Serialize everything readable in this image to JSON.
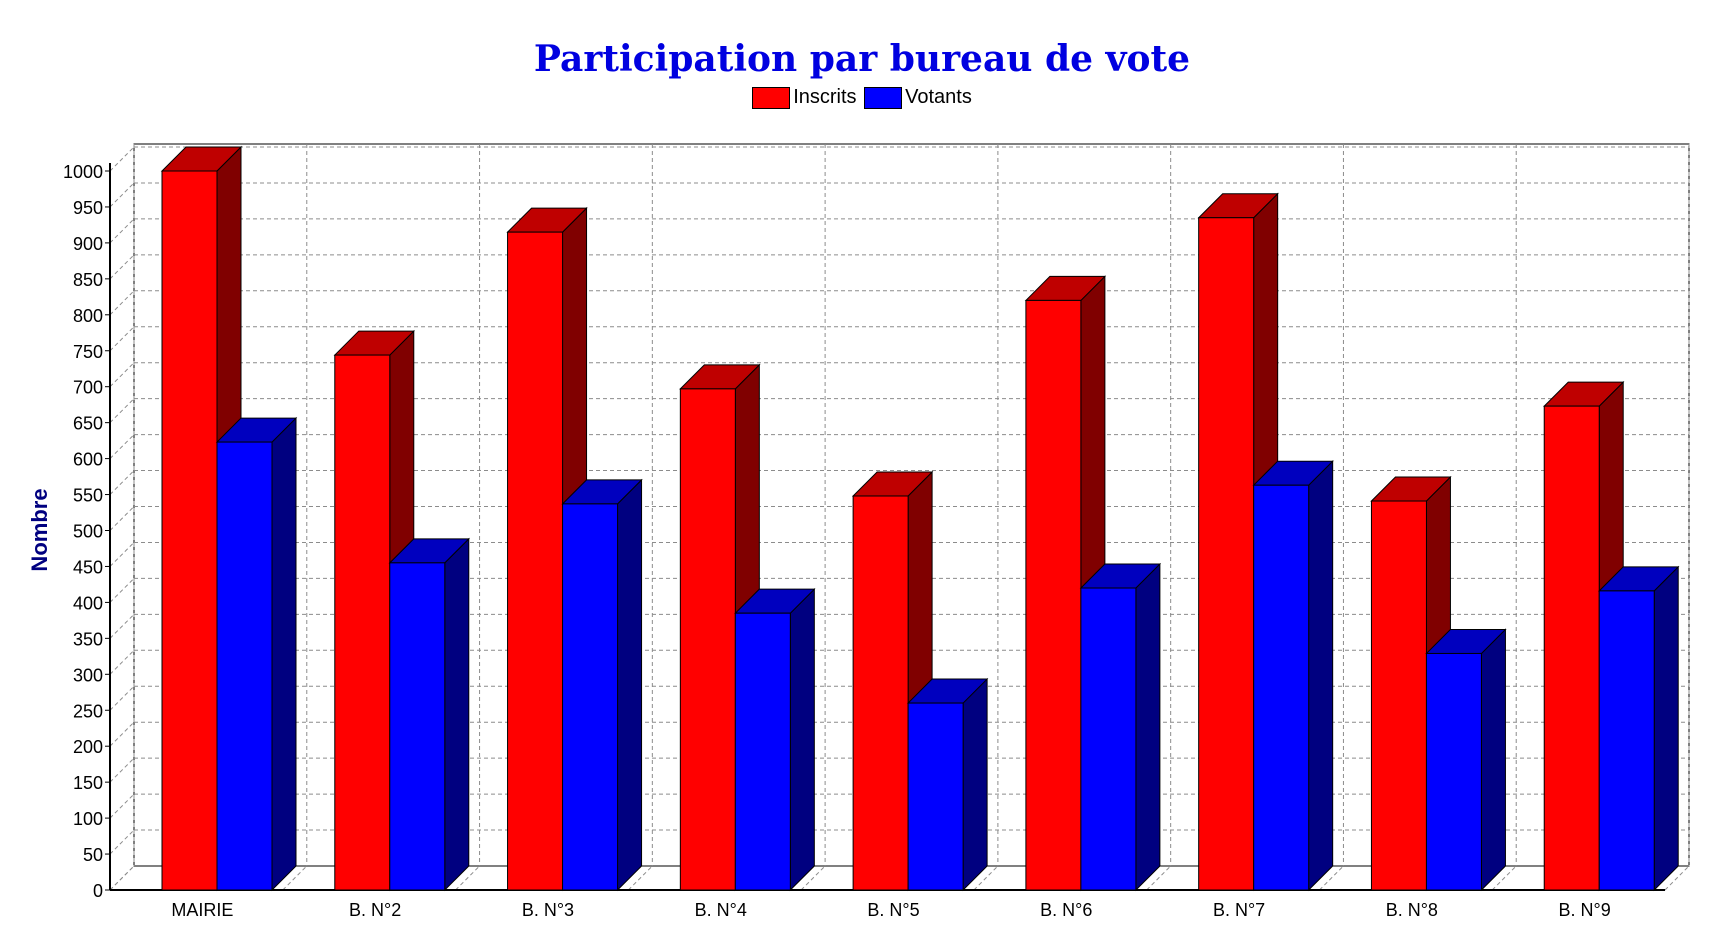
{
  "chart_data": {
    "type": "bar",
    "title": "Participation par bureau de vote",
    "xlabel": "",
    "ylabel": "Nombre",
    "categories": [
      "MAIRIE",
      "B. N°2",
      "B. N°3",
      "B. N°4",
      "B. N°5",
      "B. N°6",
      "B. N°7",
      "B. N°8",
      "B. N°9"
    ],
    "series": [
      {
        "name": "Inscrits",
        "color": "#ff0000",
        "values": [
          1000,
          744,
          915,
          697,
          548,
          820,
          935,
          541,
          673
        ]
      },
      {
        "name": "Votants",
        "color": "#0000ff",
        "values": [
          623,
          455,
          537,
          385,
          260,
          420,
          563,
          329,
          416
        ]
      }
    ],
    "ylim": [
      0,
      1000
    ],
    "yticks": [
      0,
      50,
      100,
      150,
      200,
      250,
      300,
      350,
      400,
      450,
      500,
      550,
      600,
      650,
      700,
      750,
      800,
      850,
      900,
      950,
      1000
    ],
    "grid": true,
    "legend_position": "top-center",
    "style": "3d-bar"
  }
}
